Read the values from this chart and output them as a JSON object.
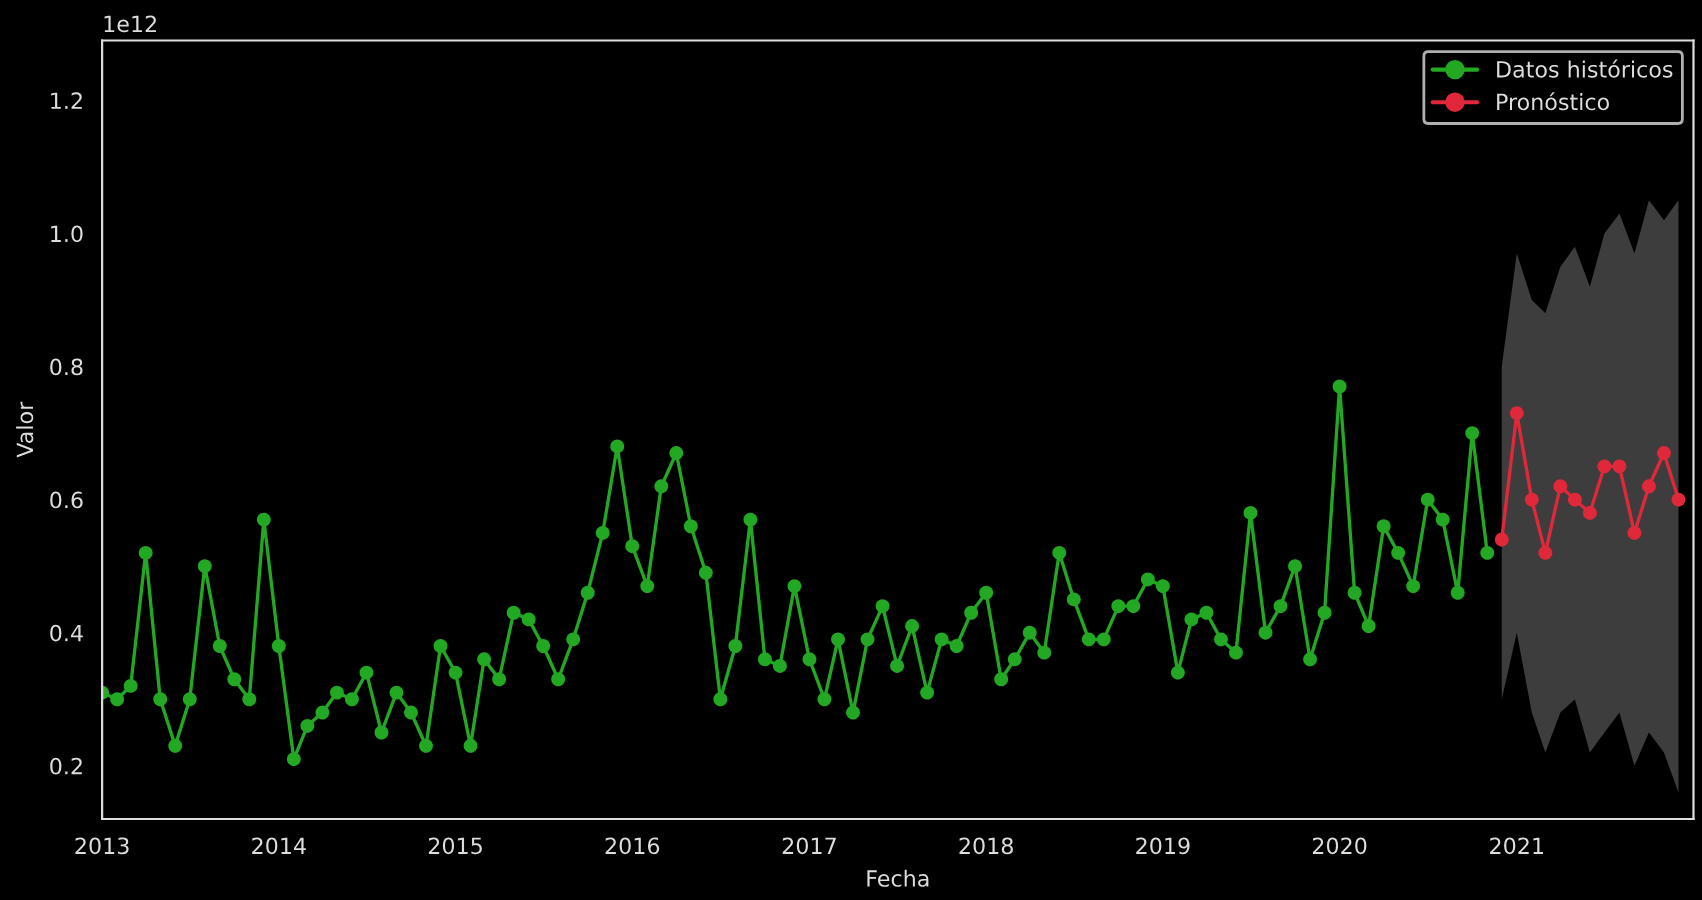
{
  "chart_data": {
    "type": "line",
    "xlabel": "Fecha",
    "ylabel": "Valor",
    "annotations": [
      "1e12"
    ],
    "xlim": [
      "2013-01",
      "2022-01"
    ],
    "xticks": [
      "2013",
      "2014",
      "2015",
      "2016",
      "2017",
      "2018",
      "2019",
      "2020",
      "2021"
    ],
    "ylim": [
      0.12,
      1.29
    ],
    "yticks": [
      {
        "value": 0.2,
        "label": "0.2"
      },
      {
        "value": 0.4,
        "label": "0.4"
      },
      {
        "value": 0.6,
        "label": "0.6"
      },
      {
        "value": 0.8,
        "label": "0.8"
      },
      {
        "value": 1.0,
        "label": "1.0"
      },
      {
        "value": 1.2,
        "label": "1.2"
      }
    ],
    "grid": false,
    "legend": "top right",
    "marker": "circle",
    "line_style": "solid",
    "series": [
      {
        "name": "Datos históricos",
        "color": "#22a822",
        "x": [
          "2013-01",
          "2013-02",
          "2013-03",
          "2013-04",
          "2013-05",
          "2013-06",
          "2013-07",
          "2013-08",
          "2013-09",
          "2013-10",
          "2013-11",
          "2013-12",
          "2014-01",
          "2014-02",
          "2014-03",
          "2014-04",
          "2014-05",
          "2014-06",
          "2014-07",
          "2014-08",
          "2014-09",
          "2014-10",
          "2014-11",
          "2014-12",
          "2015-01",
          "2015-02",
          "2015-03",
          "2015-04",
          "2015-05",
          "2015-06",
          "2015-07",
          "2015-08",
          "2015-09",
          "2015-10",
          "2015-11",
          "2015-12",
          "2016-01",
          "2016-02",
          "2016-03",
          "2016-04",
          "2016-05",
          "2016-06",
          "2016-07",
          "2016-08",
          "2016-09",
          "2016-10",
          "2016-11",
          "2016-12",
          "2017-01",
          "2017-02",
          "2017-03",
          "2017-04",
          "2017-05",
          "2017-06",
          "2017-07",
          "2017-08",
          "2017-09",
          "2017-10",
          "2017-11",
          "2017-12",
          "2018-01",
          "2018-02",
          "2018-03",
          "2018-04",
          "2018-05",
          "2018-06",
          "2018-07",
          "2018-08",
          "2018-09",
          "2018-10",
          "2018-11",
          "2018-12",
          "2019-01",
          "2019-02",
          "2019-03",
          "2019-04",
          "2019-05",
          "2019-06",
          "2019-07",
          "2019-08",
          "2019-09",
          "2019-10",
          "2019-11",
          "2019-12",
          "2020-01",
          "2020-02",
          "2020-03",
          "2020-04",
          "2020-05",
          "2020-06",
          "2020-07",
          "2020-08",
          "2020-09",
          "2020-10",
          "2020-11"
        ],
        "values": [
          0.31,
          0.3,
          0.32,
          0.52,
          0.3,
          0.23,
          0.3,
          0.5,
          0.38,
          0.33,
          0.3,
          0.57,
          0.38,
          0.21,
          0.26,
          0.28,
          0.31,
          0.3,
          0.34,
          0.25,
          0.31,
          0.28,
          0.23,
          0.38,
          0.34,
          0.23,
          0.36,
          0.33,
          0.43,
          0.42,
          0.38,
          0.33,
          0.39,
          0.46,
          0.55,
          0.68,
          0.53,
          0.47,
          0.62,
          0.67,
          0.56,
          0.49,
          0.3,
          0.38,
          0.57,
          0.36,
          0.35,
          0.47,
          0.36,
          0.3,
          0.39,
          0.28,
          0.39,
          0.44,
          0.35,
          0.41,
          0.31,
          0.39,
          0.38,
          0.43,
          0.46,
          0.33,
          0.36,
          0.4,
          0.37,
          0.52,
          0.45,
          0.39,
          0.39,
          0.44,
          0.44,
          0.48,
          0.47,
          0.34,
          0.42,
          0.43,
          0.39,
          0.37,
          0.58,
          0.4,
          0.44,
          0.5,
          0.36,
          0.43,
          0.77,
          0.46,
          0.41,
          0.56,
          0.52,
          0.47,
          0.6,
          0.57,
          0.46,
          0.7,
          0.52
        ]
      },
      {
        "name": "Pronóstico",
        "color": "#e0283a",
        "x": [
          "2020-12",
          "2021-01",
          "2021-02",
          "2021-03",
          "2021-04",
          "2021-05",
          "2021-06",
          "2021-07",
          "2021-08",
          "2021-09",
          "2021-10",
          "2021-11",
          "2021-12"
        ],
        "values": [
          0.54,
          0.73,
          0.6,
          0.52,
          0.62,
          0.6,
          0.58,
          0.65,
          0.65,
          0.55,
          0.62,
          0.67,
          0.6
        ],
        "lower": [
          0.3,
          0.4,
          0.28,
          0.22,
          0.28,
          0.3,
          0.22,
          0.25,
          0.28,
          0.2,
          0.25,
          0.22,
          0.16
        ],
        "upper": [
          0.8,
          0.97,
          0.9,
          0.88,
          0.95,
          0.98,
          0.92,
          1.0,
          1.03,
          0.97,
          1.05,
          1.02,
          1.05
        ]
      }
    ]
  }
}
